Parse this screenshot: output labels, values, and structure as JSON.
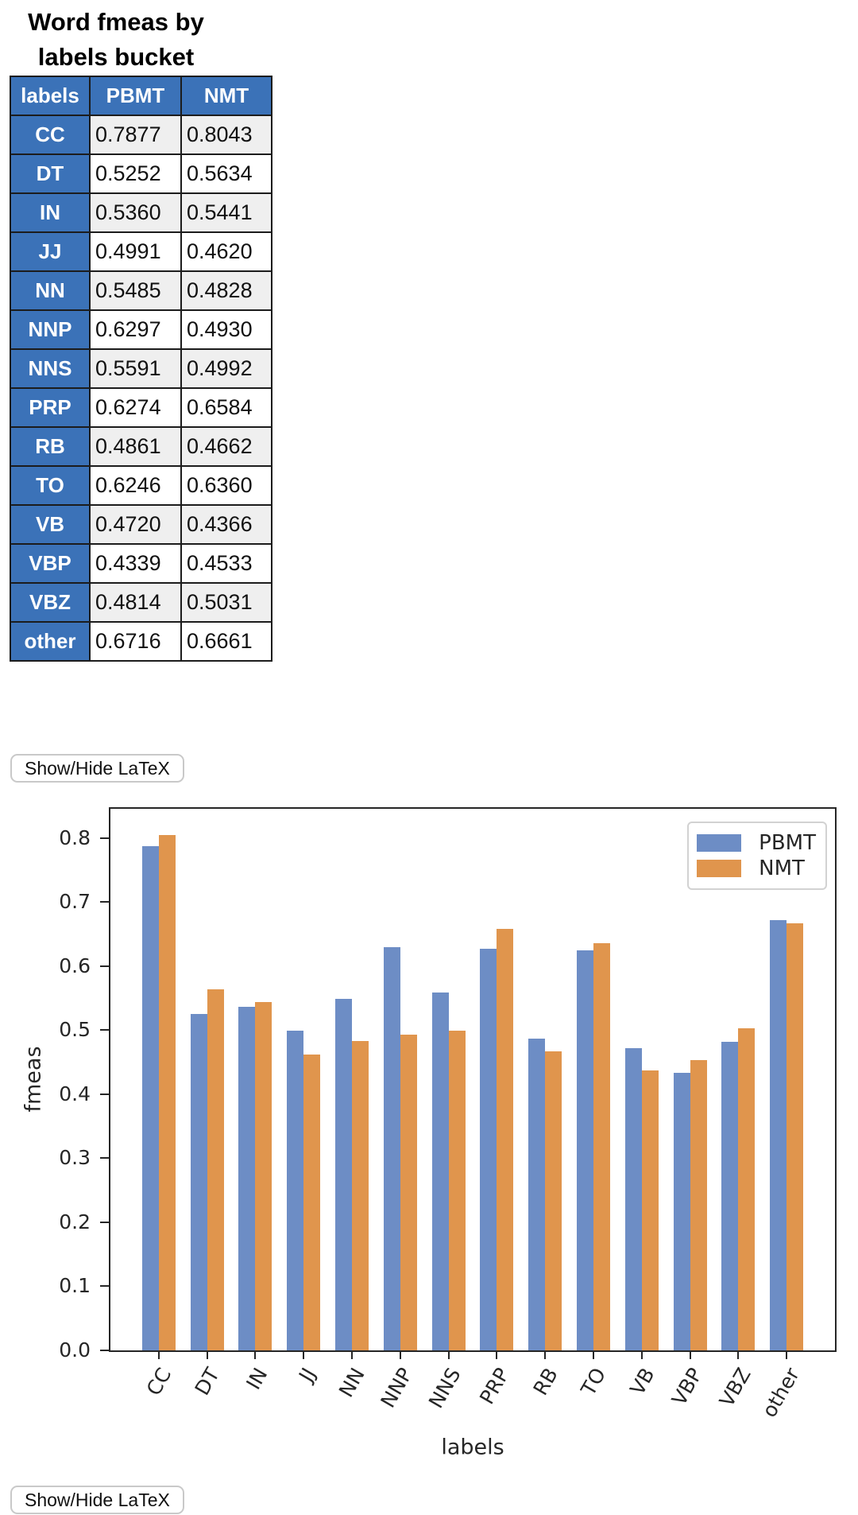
{
  "title": {
    "line1": "Word fmeas by",
    "line2": "labels bucket"
  },
  "table": {
    "columns": [
      "labels",
      "PBMT",
      "NMT"
    ],
    "rows": [
      [
        "CC",
        "0.7877",
        "0.8043"
      ],
      [
        "DT",
        "0.5252",
        "0.5634"
      ],
      [
        "IN",
        "0.5360",
        "0.5441"
      ],
      [
        "JJ",
        "0.4991",
        "0.4620"
      ],
      [
        "NN",
        "0.5485",
        "0.4828"
      ],
      [
        "NNP",
        "0.6297",
        "0.4930"
      ],
      [
        "NNS",
        "0.5591",
        "0.4992"
      ],
      [
        "PRP",
        "0.6274",
        "0.6584"
      ],
      [
        "RB",
        "0.4861",
        "0.4662"
      ],
      [
        "TO",
        "0.6246",
        "0.6360"
      ],
      [
        "VB",
        "0.4720",
        "0.4366"
      ],
      [
        "VBP",
        "0.4339",
        "0.4533"
      ],
      [
        "VBZ",
        "0.4814",
        "0.5031"
      ],
      [
        "other",
        "0.6716",
        "0.6661"
      ]
    ],
    "header_color": "#3b72b8",
    "alt_row_color": "#efefef"
  },
  "buttons": {
    "latex_top": "Show/Hide LaTeX",
    "latex_bottom": "Show/Hide LaTeX"
  },
  "chart_data": {
    "type": "bar",
    "title": "",
    "xlabel": "labels",
    "ylabel": "fmeas",
    "categories": [
      "CC",
      "DT",
      "IN",
      "JJ",
      "NN",
      "NNP",
      "NNS",
      "PRP",
      "RB",
      "TO",
      "VB",
      "VBP",
      "VBZ",
      "other"
    ],
    "series": [
      {
        "name": "PBMT",
        "values": [
          0.7877,
          0.5252,
          0.536,
          0.4991,
          0.5485,
          0.6297,
          0.5591,
          0.6274,
          0.4861,
          0.6246,
          0.472,
          0.4339,
          0.4814,
          0.6716
        ]
      },
      {
        "name": "NMT",
        "values": [
          0.8043,
          0.5634,
          0.5441,
          0.462,
          0.4828,
          0.493,
          0.4992,
          0.6584,
          0.4662,
          0.636,
          0.4366,
          0.4533,
          0.5031,
          0.6661
        ]
      }
    ],
    "yticks": [
      0.0,
      0.1,
      0.2,
      0.3,
      0.4,
      0.5,
      0.6,
      0.7,
      0.8
    ],
    "ylim": [
      0.0,
      0.851
    ],
    "grid": false,
    "legend_position": "upper right",
    "colors": {
      "PBMT": "#6d8dc5",
      "NMT": "#e0954d"
    },
    "xtick_rotation": -60
  }
}
